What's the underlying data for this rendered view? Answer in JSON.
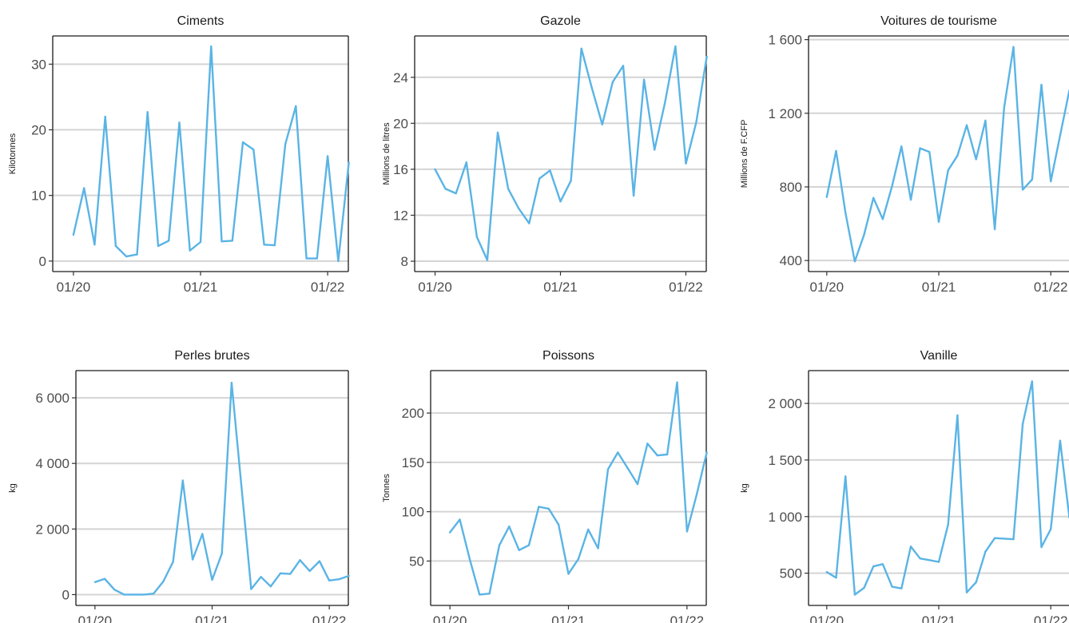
{
  "chart_data": [
    {
      "type": "line",
      "title": "Ciments",
      "ylabel": "Kilotonnes",
      "xlabel": "",
      "x_ticks": [
        "01/20",
        "01/21",
        "01/22"
      ],
      "y_ticks": [
        "0",
        "10",
        "20",
        "30"
      ],
      "y_tick_values": [
        0,
        10,
        20,
        30
      ],
      "ylim": [
        -1.6,
        34.3
      ],
      "grid": "horizontal",
      "color": "#5ab4e5",
      "x": [
        "2020-01",
        "2020-02",
        "2020-03",
        "2020-04",
        "2020-05",
        "2020-06",
        "2020-07",
        "2020-08",
        "2020-09",
        "2020-10",
        "2020-11",
        "2020-12",
        "2021-01",
        "2021-02",
        "2021-03",
        "2021-04",
        "2021-05",
        "2021-06",
        "2021-07",
        "2021-08",
        "2021-09",
        "2021-10",
        "2021-11",
        "2021-12",
        "2022-01",
        "2022-02",
        "2022-03"
      ],
      "values": [
        4.0,
        11.1,
        2.5,
        22.0,
        2.3,
        0.7,
        1.0,
        22.7,
        2.3,
        3.1,
        21.1,
        1.6,
        2.9,
        32.7,
        3.0,
        3.1,
        18.1,
        17.0,
        2.5,
        2.4,
        17.8,
        23.6,
        0.4,
        0.4,
        16.0,
        0.0,
        15.0
      ]
    },
    {
      "type": "line",
      "title": "Gazole",
      "ylabel": "Millions de litres",
      "xlabel": "",
      "x_ticks": [
        "01/20",
        "01/21",
        "01/22"
      ],
      "y_ticks": [
        "8",
        "12",
        "16",
        "20",
        "24"
      ],
      "y_tick_values": [
        8,
        12,
        16,
        20,
        24
      ],
      "ylim": [
        7.1,
        27.6
      ],
      "grid": "horizontal",
      "color": "#5ab4e5",
      "x": [
        "2020-01",
        "2020-02",
        "2020-03",
        "2020-04",
        "2020-05",
        "2020-06",
        "2020-07",
        "2020-08",
        "2020-09",
        "2020-10",
        "2020-11",
        "2020-12",
        "2021-01",
        "2021-02",
        "2021-03",
        "2021-04",
        "2021-05",
        "2021-06",
        "2021-07",
        "2021-08",
        "2021-09",
        "2021-10",
        "2021-11",
        "2021-12",
        "2022-01",
        "2022-02",
        "2022-03"
      ],
      "values": [
        16.0,
        14.3,
        13.9,
        16.6,
        10.1,
        8.1,
        19.2,
        14.3,
        12.6,
        11.3,
        15.2,
        15.9,
        13.2,
        15.0,
        26.5,
        23.1,
        19.9,
        23.6,
        25.0,
        13.7,
        23.8,
        17.7,
        21.8,
        26.7,
        16.5,
        20.1,
        25.8
      ]
    },
    {
      "type": "line",
      "title": "Voitures de tourisme",
      "ylabel": "Millions de F.CFP",
      "xlabel": "",
      "x_ticks": [
        "01/20",
        "01/21",
        "01/22"
      ],
      "y_ticks": [
        "400",
        "800",
        "1 200",
        "1 600"
      ],
      "y_tick_values": [
        400,
        800,
        1200,
        1600
      ],
      "ylim": [
        340,
        1620
      ],
      "grid": "horizontal",
      "color": "#5ab4e5",
      "x": [
        "2020-01",
        "2020-02",
        "2020-03",
        "2020-04",
        "2020-05",
        "2020-06",
        "2020-07",
        "2020-08",
        "2020-09",
        "2020-10",
        "2020-11",
        "2020-12",
        "2021-01",
        "2021-02",
        "2021-03",
        "2021-04",
        "2021-05",
        "2021-06",
        "2021-07",
        "2021-08",
        "2021-09",
        "2021-10",
        "2021-11",
        "2021-12",
        "2022-01",
        "2022-02",
        "2022-03"
      ],
      "values": [
        745,
        995,
        660,
        395,
        540,
        740,
        625,
        805,
        1020,
        730,
        1010,
        990,
        610,
        890,
        970,
        1135,
        950,
        1160,
        570,
        1230,
        1560,
        785,
        840,
        1355,
        830,
        1080,
        1325
      ]
    },
    {
      "type": "line",
      "title": "Perles brutes",
      "ylabel": "kg",
      "xlabel": "",
      "x_ticks": [
        "01/20",
        "01/21",
        "01/22"
      ],
      "y_ticks": [
        "0",
        "2 000",
        "4 000",
        "6 000"
      ],
      "y_tick_values": [
        0,
        2000,
        4000,
        6000
      ],
      "ylim": [
        -330,
        6830
      ],
      "grid": "horizontal",
      "color": "#5ab4e5",
      "x": [
        "2020-01",
        "2020-02",
        "2020-03",
        "2020-04",
        "2020-05",
        "2020-06",
        "2020-07",
        "2020-08",
        "2020-09",
        "2020-10",
        "2020-11",
        "2020-12",
        "2021-01",
        "2021-02",
        "2021-03",
        "2021-04",
        "2021-05",
        "2021-06",
        "2021-07",
        "2021-08",
        "2021-09",
        "2021-10",
        "2021-11",
        "2021-12",
        "2022-01",
        "2022-02",
        "2022-03"
      ],
      "values": [
        380,
        480,
        150,
        0,
        0,
        0,
        30,
        400,
        1000,
        3480,
        1070,
        1850,
        450,
        1250,
        6460,
        3300,
        170,
        540,
        250,
        650,
        630,
        1050,
        720,
        1020,
        430,
        470,
        570
      ]
    },
    {
      "type": "line",
      "title": "Poissons",
      "ylabel": "Tonnes",
      "xlabel": "",
      "x_ticks": [
        "01/20",
        "01/21",
        "01/22"
      ],
      "y_ticks": [
        "50",
        "100",
        "150",
        "200"
      ],
      "y_tick_values": [
        50,
        100,
        150,
        200
      ],
      "ylim": [
        5,
        243
      ],
      "grid": "horizontal",
      "color": "#5ab4e5",
      "x": [
        "2020-01",
        "2020-02",
        "2020-03",
        "2020-04",
        "2020-05",
        "2020-06",
        "2020-07",
        "2020-08",
        "2020-09",
        "2020-10",
        "2020-11",
        "2020-12",
        "2021-01",
        "2021-02",
        "2021-03",
        "2021-04",
        "2021-05",
        "2021-06",
        "2021-07",
        "2021-08",
        "2021-09",
        "2021-10",
        "2021-11",
        "2021-12",
        "2022-01",
        "2022-02",
        "2022-03"
      ],
      "values": [
        79,
        92,
        52,
        16,
        17,
        66,
        85,
        61,
        66,
        105,
        103,
        87,
        37,
        52,
        82,
        63,
        143,
        160,
        144,
        128,
        169,
        157,
        158,
        231,
        80,
        118,
        160
      ]
    },
    {
      "type": "line",
      "title": "Vanille",
      "ylabel": "kg",
      "xlabel": "",
      "x_ticks": [
        "01/20",
        "01/21",
        "01/22"
      ],
      "y_ticks": [
        "500",
        "1 000",
        "1 500",
        "2 000"
      ],
      "y_tick_values": [
        500,
        1000,
        1500,
        2000
      ],
      "ylim": [
        215,
        2290
      ],
      "grid": "horizontal",
      "color": "#5ab4e5",
      "x": [
        "2020-01",
        "2020-02",
        "2020-03",
        "2020-04",
        "2020-05",
        "2020-06",
        "2020-07",
        "2020-08",
        "2020-09",
        "2020-10",
        "2020-11",
        "2020-12",
        "2021-01",
        "2021-02",
        "2021-03",
        "2021-04",
        "2021-05",
        "2021-06",
        "2021-07",
        "2021-08",
        "2021-09",
        "2021-10",
        "2021-11",
        "2021-12",
        "2022-01",
        "2022-02",
        "2022-03"
      ],
      "values": [
        510,
        460,
        1355,
        310,
        370,
        560,
        580,
        380,
        365,
        735,
        630,
        615,
        600,
        930,
        1895,
        330,
        420,
        690,
        810,
        805,
        800,
        1820,
        2195,
        730,
        890,
        1670,
        990
      ]
    }
  ]
}
